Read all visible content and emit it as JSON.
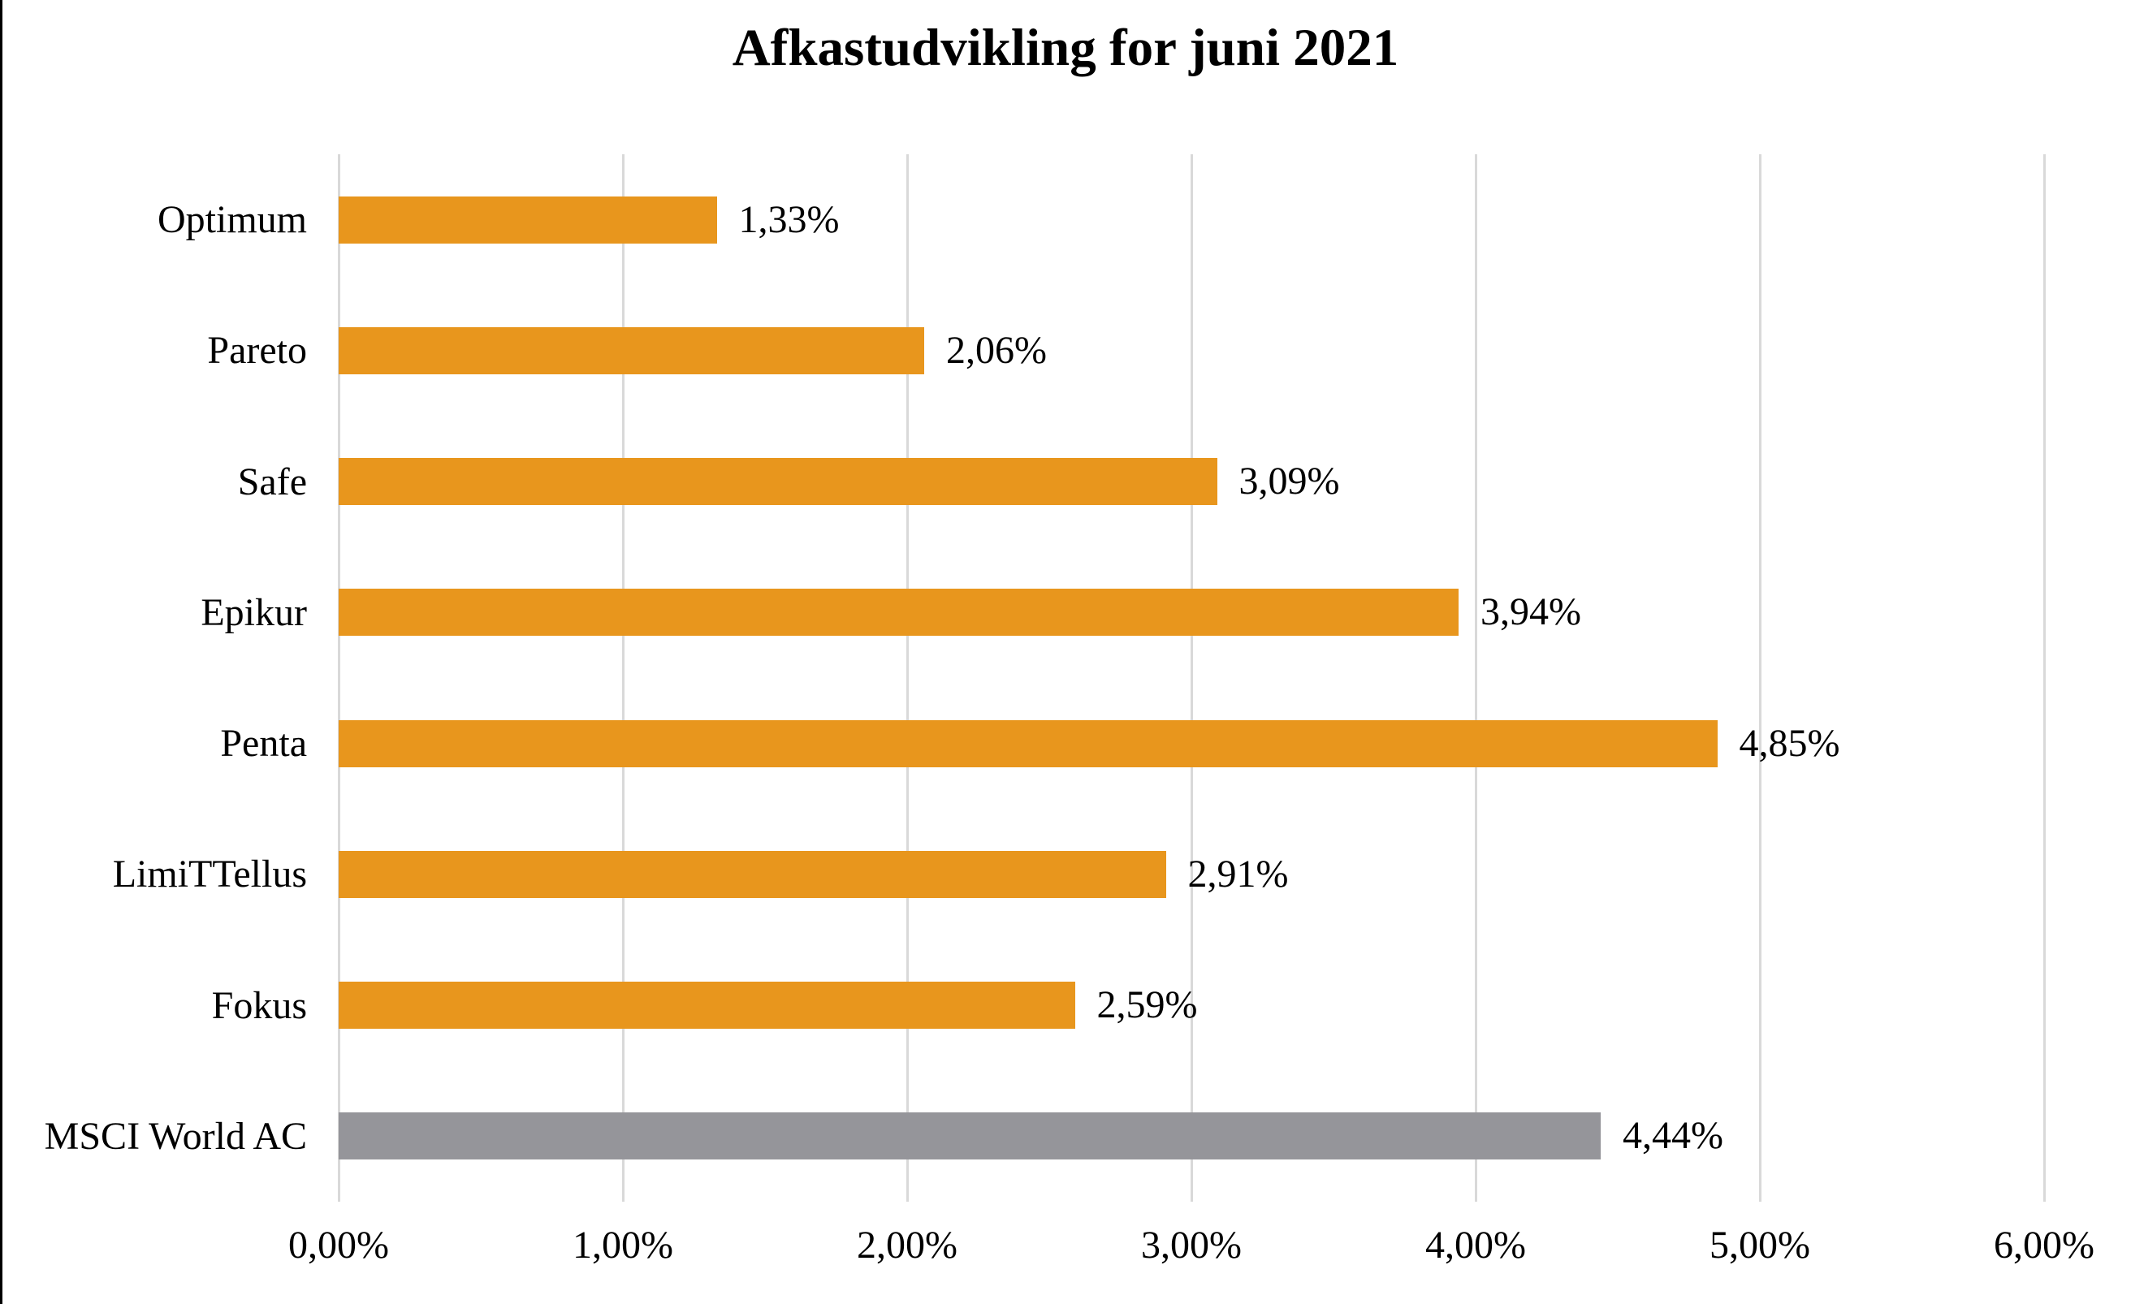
{
  "title": "Afkastudvikling for juni 2021",
  "chart_data": {
    "type": "bar",
    "orientation": "horizontal",
    "title": "Afkastudvikling for juni 2021",
    "categories": [
      "Optimum",
      "Pareto",
      "Safe",
      "Epikur",
      "Penta",
      "LimiTTellus",
      "Fokus",
      "MSCI World AC"
    ],
    "values": [
      1.33,
      2.06,
      3.09,
      3.94,
      4.85,
      2.91,
      2.59,
      4.44
    ],
    "value_labels": [
      "1,33%",
      "2,06%",
      "3,09%",
      "3,94%",
      "4,85%",
      "2,91%",
      "2,59%",
      "4,44%"
    ],
    "bar_colors": [
      "#E8961D",
      "#E8961D",
      "#E8961D",
      "#E8961D",
      "#E8961D",
      "#E8961D",
      "#E8961D",
      "#95959A"
    ],
    "x_ticks": [
      "0,00%",
      "1,00%",
      "2,00%",
      "3,00%",
      "4,00%",
      "5,00%",
      "6,00%"
    ],
    "x_tick_values": [
      0,
      1,
      2,
      3,
      4,
      5,
      6
    ],
    "xlim": [
      0,
      6
    ],
    "grid": true,
    "legend": false,
    "colors": {
      "fund_bar": "#E8961D",
      "benchmark_bar": "#95959A",
      "gridline": "#D9D9D9",
      "text": "#000000",
      "page_border": "#000000",
      "background": "#FFFFFF"
    }
  }
}
